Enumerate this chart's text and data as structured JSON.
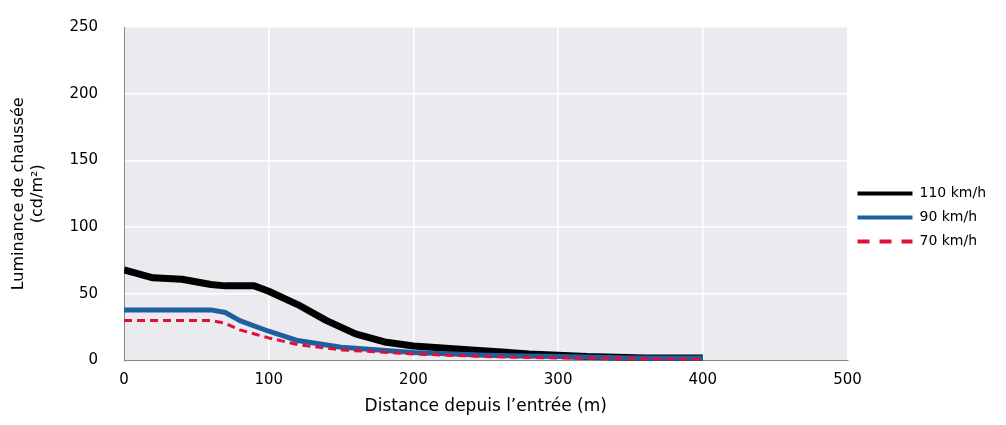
{
  "chart_data": {
    "type": "line",
    "xlabel": "Distance depuis l’entrée (m)",
    "ylabel": "Luminance de chaussée\n(cd/m²)",
    "xlim": [
      0,
      500
    ],
    "xticks": [
      0,
      100,
      200,
      300,
      400,
      500
    ],
    "ylim": [
      0,
      250
    ],
    "yticks": [
      0,
      50,
      100,
      150,
      200,
      250
    ],
    "grid": true,
    "legend": "right",
    "marker": "none",
    "series": [
      {
        "name": "110 km/h",
        "color": "#000000",
        "line_style": "solid",
        "x": [
          0,
          20,
          40,
          60,
          70,
          90,
          100,
          120,
          140,
          160,
          180,
          200,
          240,
          280,
          320,
          360,
          400
        ],
        "values": [
          68,
          62,
          61,
          57,
          56,
          56,
          52,
          42,
          30,
          20,
          14,
          11,
          8,
          5,
          3,
          2,
          2
        ]
      },
      {
        "name": "90 km/h",
        "color": "#1f5f9f",
        "line_style": "solid",
        "x": [
          0,
          60,
          70,
          80,
          100,
          120,
          150,
          200,
          250,
          300,
          350,
          400
        ],
        "values": [
          38,
          38,
          36,
          30,
          22,
          15,
          10,
          6,
          4,
          3,
          2,
          2
        ]
      },
      {
        "name": "70 km/h",
        "color": "#e0103a",
        "line_style": "dashed",
        "x": [
          0,
          60,
          70,
          80,
          100,
          120,
          150,
          200,
          250,
          300,
          400
        ],
        "values": [
          30,
          30,
          28,
          23,
          17,
          12,
          8,
          5,
          3,
          2,
          1
        ]
      }
    ]
  }
}
